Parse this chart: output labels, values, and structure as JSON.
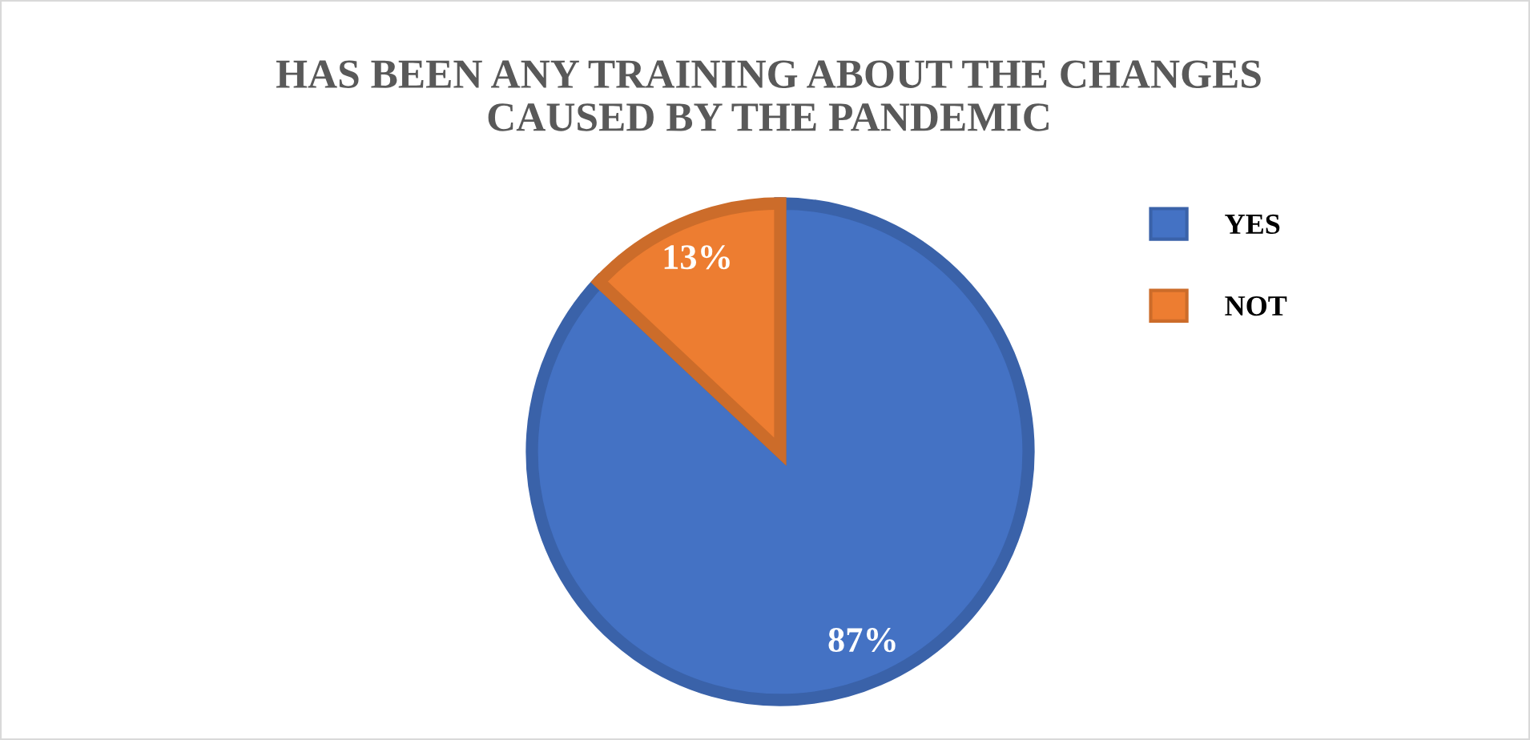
{
  "chart_data": {
    "type": "pie",
    "title": "HAS BEEN ANY TRAINING ABOUT THE CHANGES CAUSED BY THE PANDEMIC",
    "categories": [
      "YES",
      "NOT"
    ],
    "values": [
      87,
      13
    ],
    "colors": [
      "#4472c4",
      "#ed7d31"
    ],
    "value_labels": [
      "87%",
      "13%"
    ],
    "legend": "right"
  }
}
